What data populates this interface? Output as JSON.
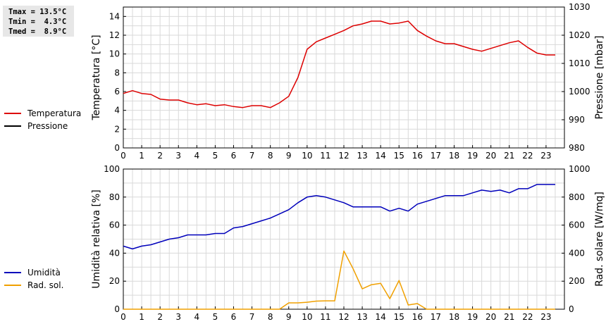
{
  "stats": {
    "tmax": "Tmax = 13.5°C",
    "tmin": "Tmin =  4.3°C",
    "tmed": "Tmed =  8.9°C"
  },
  "colors": {
    "temperature": "#dd0000",
    "pressure": "#000000",
    "humidity": "#0000bb",
    "radiation": "#f0a000",
    "grid": "#d9d9d9",
    "stats_bg": "#e7e7e7"
  },
  "chart_data": [
    {
      "type": "line",
      "grid": true,
      "ylabel": "Temperatura [°C]",
      "y2label": "Pressione [mbar]",
      "xlim": [
        0,
        24
      ],
      "xticks": [
        0,
        1,
        2,
        3,
        4,
        5,
        6,
        7,
        8,
        9,
        10,
        11,
        12,
        13,
        14,
        15,
        16,
        17,
        18,
        19,
        20,
        21,
        22,
        23
      ],
      "ylim": [
        0,
        15
      ],
      "yticks": [
        0,
        2,
        4,
        6,
        8,
        10,
        12,
        14
      ],
      "y2lim": [
        980,
        1030
      ],
      "y2ticks": [
        980,
        990,
        1000,
        1010,
        1020,
        1030
      ],
      "series": [
        {
          "name": "Temperatura",
          "axis": "left",
          "x": [
            0,
            0.5,
            1,
            1.5,
            2,
            2.5,
            3,
            3.5,
            4,
            4.5,
            5,
            5.5,
            6,
            6.5,
            7,
            7.5,
            8,
            8.5,
            9,
            9.5,
            10,
            10.5,
            11,
            11.5,
            12,
            12.5,
            13,
            13.5,
            14,
            14.5,
            15,
            15.5,
            16,
            16.5,
            17,
            17.5,
            18,
            18.5,
            19,
            19.5,
            20,
            20.5,
            21,
            21.5,
            22,
            22.5,
            23,
            23.5
          ],
          "values": [
            5.8,
            6.1,
            5.8,
            5.7,
            5.2,
            5.1,
            5.1,
            4.8,
            4.6,
            4.7,
            4.5,
            4.6,
            4.4,
            4.3,
            4.5,
            4.5,
            4.3,
            4.8,
            5.5,
            7.5,
            10.5,
            11.3,
            11.7,
            12.1,
            12.5,
            13.0,
            13.2,
            13.5,
            13.5,
            13.2,
            13.3,
            13.5,
            12.5,
            11.9,
            11.4,
            11.1,
            11.1,
            10.8,
            10.5,
            10.3,
            10.6,
            10.9,
            11.2,
            11.4,
            10.7,
            10.1,
            9.9,
            9.9
          ]
        },
        {
          "name": "Pressione",
          "axis": "right",
          "x": [],
          "values": []
        }
      ]
    },
    {
      "type": "line",
      "grid": true,
      "ylabel": "Umidità relativa [%]",
      "y2label": "Rad. solare [W/mq]",
      "xlim": [
        0,
        24
      ],
      "xticks": [
        0,
        1,
        2,
        3,
        4,
        5,
        6,
        7,
        8,
        9,
        10,
        11,
        12,
        13,
        14,
        15,
        16,
        17,
        18,
        19,
        20,
        21,
        22,
        23
      ],
      "ylim": [
        0,
        100
      ],
      "yticks": [
        0,
        20,
        40,
        60,
        80,
        100
      ],
      "y2lim": [
        0,
        1000
      ],
      "y2ticks": [
        0,
        200,
        400,
        600,
        800,
        1000
      ],
      "series": [
        {
          "name": "Umidità",
          "axis": "left",
          "x": [
            0,
            0.5,
            1,
            1.5,
            2,
            2.5,
            3,
            3.5,
            4,
            4.5,
            5,
            5.5,
            6,
            6.5,
            7,
            7.5,
            8,
            8.5,
            9,
            9.5,
            10,
            10.5,
            11,
            11.5,
            12,
            12.5,
            13,
            13.5,
            14,
            14.5,
            15,
            15.5,
            16,
            16.5,
            17,
            17.5,
            18,
            18.5,
            19,
            19.5,
            20,
            20.5,
            21,
            21.5,
            22,
            22.5,
            23,
            23.5
          ],
          "values": [
            45,
            43,
            45,
            46,
            48,
            50,
            51,
            53,
            53,
            53,
            54,
            54,
            58,
            59,
            61,
            63,
            65,
            68,
            71,
            76,
            80,
            81,
            80,
            78,
            76,
            73,
            73,
            73,
            73,
            70,
            72,
            70,
            75,
            77,
            79,
            81,
            81,
            81,
            83,
            85,
            84,
            85,
            83,
            86,
            86,
            89,
            89,
            89
          ]
        },
        {
          "name": "Rad. sol.",
          "axis": "right",
          "x": [
            0,
            0.5,
            1,
            1.5,
            2,
            2.5,
            3,
            3.5,
            4,
            4.5,
            5,
            5.5,
            6,
            6.5,
            7,
            7.5,
            8,
            8.5,
            9,
            9.5,
            10,
            10.5,
            11,
            11.5,
            12,
            12.5,
            13,
            13.5,
            14,
            14.5,
            15,
            15.5,
            16,
            16.5,
            17,
            17.5,
            18,
            18.5,
            19,
            19.5,
            20,
            20.5,
            21,
            21.5,
            22,
            22.5,
            23,
            23.5
          ],
          "values": [
            0,
            0,
            0,
            0,
            0,
            0,
            0,
            0,
            0,
            0,
            0,
            0,
            0,
            0,
            0,
            0,
            0,
            0,
            45,
            45,
            50,
            58,
            60,
            60,
            415,
            290,
            145,
            175,
            185,
            75,
            205,
            30,
            40,
            0,
            0,
            0,
            0,
            0,
            0,
            0,
            0,
            0,
            0,
            0,
            0,
            0,
            0,
            0
          ]
        }
      ]
    }
  ]
}
